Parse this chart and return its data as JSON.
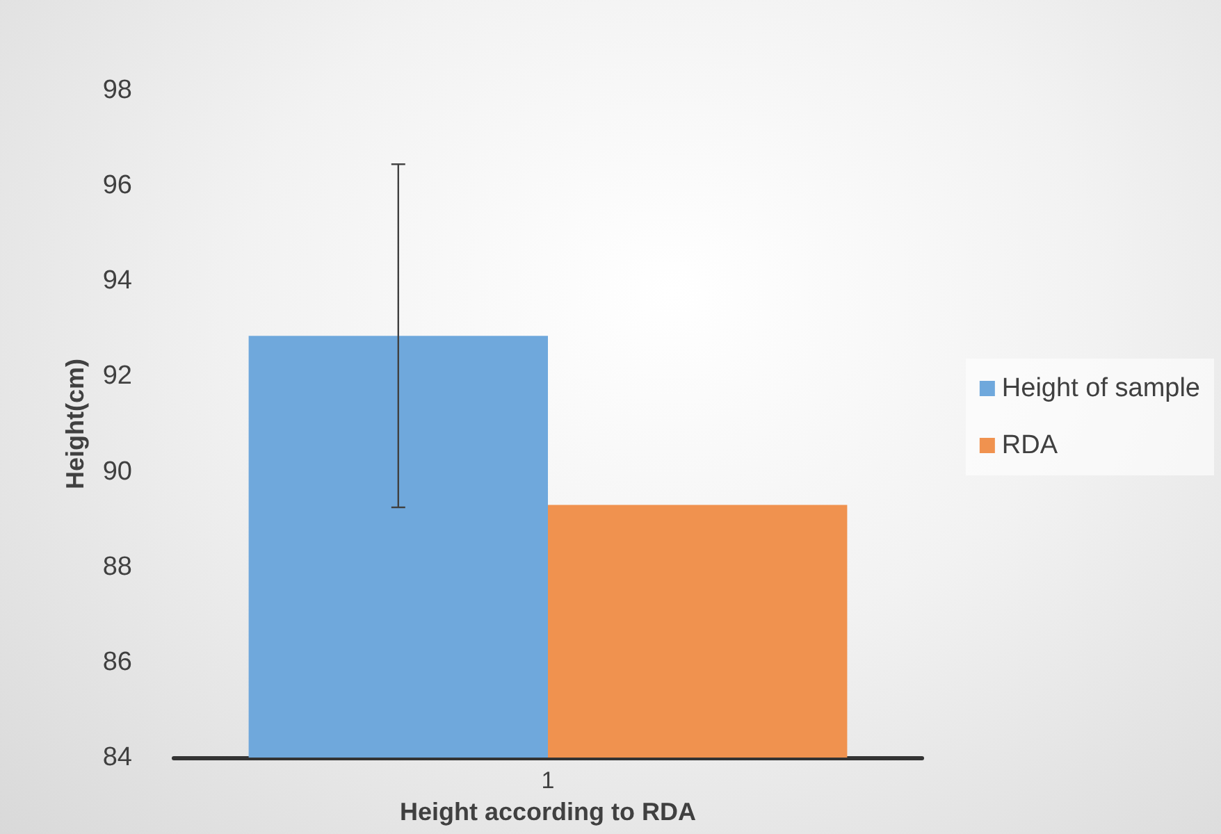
{
  "chart_data": {
    "type": "bar",
    "xlabel": "Height according to RDA",
    "ylabel": "Height(cm)",
    "categories": [
      "1"
    ],
    "series": [
      {
        "name": "Height of sample",
        "color": "#6fa8dc",
        "values": [
          92.85
        ],
        "errors": [
          3.6
        ]
      },
      {
        "name": "RDA",
        "color": "#f0924f",
        "values": [
          89.3
        ]
      }
    ],
    "ylim": [
      84,
      98
    ],
    "yticks": [
      84,
      86,
      88,
      90,
      92,
      94,
      96,
      98
    ],
    "grid": false,
    "legend": "right"
  }
}
